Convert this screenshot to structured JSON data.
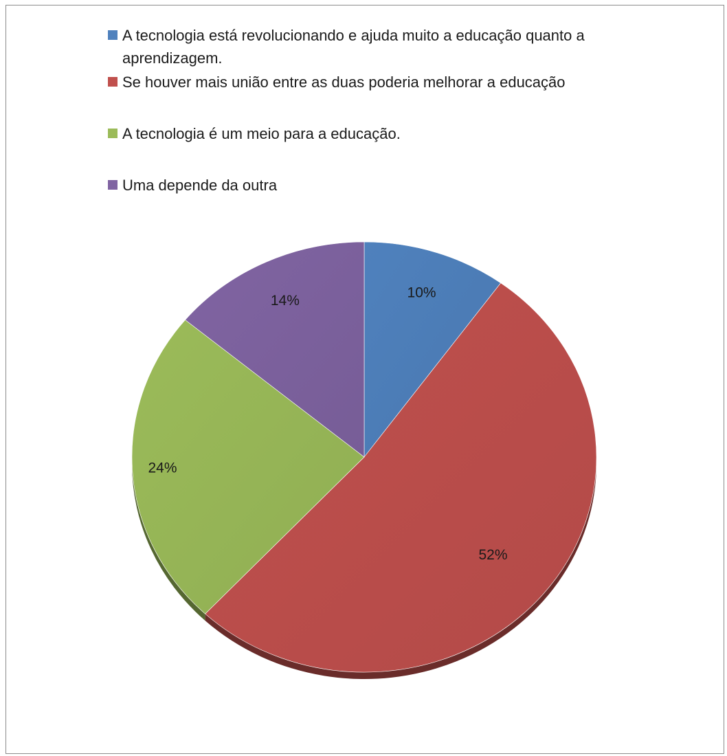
{
  "chart_data": {
    "type": "pie",
    "style": "3d-tilted",
    "legend_position": "top",
    "slices": [
      {
        "label": "A tecnologia está revolucionando e ajuda muito a educação quanto a aprendizagem.",
        "value": 10,
        "data_label": "10%",
        "color": "#4f81bd"
      },
      {
        "label": "Se houver mais união entre as duas poderia melhorar a educação",
        "value": 52,
        "data_label": "52%",
        "color": "#c0504d"
      },
      {
        "label": "A tecnologia é um meio para a educação.",
        "value": 24,
        "data_label": "24%",
        "color": "#9bbb59"
      },
      {
        "label": "Uma depende da outra",
        "value": 14,
        "data_label": "14%",
        "color": "#8064a2"
      }
    ]
  }
}
